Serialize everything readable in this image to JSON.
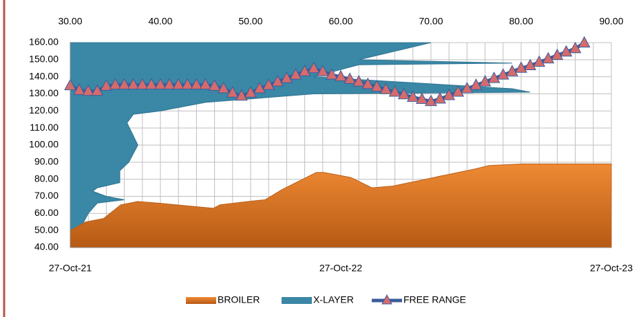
{
  "chart_data": {
    "type": "combo",
    "xlim": [
      30,
      90
    ],
    "xticks": [
      {
        "value": 30,
        "label": "30.00"
      },
      {
        "value": 40,
        "label": "40.00"
      },
      {
        "value": 50,
        "label": "50.00"
      },
      {
        "value": 60,
        "label": "60.00"
      },
      {
        "value": 70,
        "label": "70.00"
      },
      {
        "value": 80,
        "label": "80.00"
      },
      {
        "value": 90,
        "label": "90.00"
      }
    ],
    "x_minor_ticks": [
      32,
      34,
      36,
      38,
      42,
      44,
      46,
      48,
      52,
      54,
      56,
      58,
      62,
      64,
      66,
      68,
      72,
      74,
      76,
      78,
      82,
      84,
      86,
      88
    ],
    "x2lim": [
      "2021-10-27",
      "2023-10-27"
    ],
    "x2ticks": [
      {
        "value": "2021-10-27",
        "label": "27-Oct-21"
      },
      {
        "value": "2022-10-27",
        "label": "27-Oct-22"
      },
      {
        "value": "2023-10-27",
        "label": "27-Oct-23"
      }
    ],
    "ylim": [
      40,
      160
    ],
    "yticks": [
      {
        "value": 40,
        "label": "40.00"
      },
      {
        "value": 50,
        "label": "50.00"
      },
      {
        "value": 60,
        "label": "60.00"
      },
      {
        "value": 70,
        "label": "70.00"
      },
      {
        "value": 80,
        "label": "80.00"
      },
      {
        "value": 90,
        "label": "90.00"
      },
      {
        "value": 100,
        "label": "100.00"
      },
      {
        "value": 110,
        "label": "110.00"
      },
      {
        "value": 120,
        "label": "120.00"
      },
      {
        "value": 130,
        "label": "130.00"
      },
      {
        "value": 140,
        "label": "140.00"
      },
      {
        "value": 150,
        "label": "150.00"
      },
      {
        "value": 160,
        "label": "160.00"
      }
    ],
    "grid": true,
    "legend": "bottom",
    "series": [
      {
        "name": "X-LAYER",
        "type": "area",
        "xaxis": "x",
        "color": "#3a87a6",
        "x": [
          70,
          62,
          79,
          62,
          57,
          79,
          81,
          57,
          45,
          40,
          37,
          36.3,
          37.5,
          36.5,
          35.5,
          35.5,
          33,
          32.5,
          34,
          36,
          33,
          32,
          31,
          34.5,
          34.5
        ],
        "values": [
          160,
          150,
          148,
          147,
          140,
          133,
          131,
          130,
          125,
          120,
          118,
          113,
          100,
          90,
          85,
          78,
          75,
          73,
          70,
          68,
          66,
          60,
          50,
          43,
          41
        ]
      },
      {
        "name": "BROILER",
        "type": "area",
        "xaxis": "x2",
        "color": "#d8731f",
        "x": [
          "2021-10-27",
          "2021-11-17",
          "2021-12-11",
          "2022-01-03",
          "2022-01-26",
          "2022-02-23",
          "2022-05-08",
          "2022-05-17",
          "2022-06-24",
          "2022-07-17",
          "2022-08-09",
          "2022-09-24",
          "2022-10-04",
          "2022-11-10",
          "2022-12-08",
          "2023-01-05",
          "2023-03-01",
          "2023-04-26",
          "2023-05-15",
          "2023-06-30",
          "2023-10-27"
        ],
        "values": [
          50,
          55,
          57,
          65,
          67,
          66,
          63,
          65,
          67,
          68,
          74,
          84,
          84,
          81,
          75,
          76,
          81,
          86,
          88,
          89,
          89
        ]
      },
      {
        "name": "FREE RANGE",
        "type": "line",
        "xaxis": "x",
        "color": "#3b5c9c",
        "marker_color": "#d66b6b",
        "x": [
          30,
          31,
          32,
          33,
          34,
          35,
          36,
          37,
          38,
          39,
          40,
          41,
          42,
          43,
          44,
          45,
          46,
          47,
          48,
          49,
          50,
          51,
          52,
          53,
          54,
          55,
          56,
          57,
          58,
          59,
          60,
          61,
          62,
          63,
          64,
          65,
          66,
          67,
          68,
          69,
          70,
          71,
          72,
          73,
          74,
          75,
          76,
          77,
          78,
          79,
          80,
          81,
          82,
          83,
          84,
          85,
          86,
          87
        ],
        "values": [
          134.8,
          132,
          131.5,
          131.5,
          134.5,
          135.2,
          135.2,
          135.2,
          135.2,
          135.2,
          135.2,
          135.2,
          135.2,
          135.2,
          135.2,
          135.2,
          134.5,
          133,
          130.5,
          128.7,
          130.5,
          133,
          135,
          137,
          139,
          141,
          143,
          144.8,
          143,
          141,
          140,
          138.5,
          137,
          135.5,
          134,
          132.5,
          131,
          129.5,
          128,
          126.8,
          125.5,
          127,
          129,
          131,
          133,
          135,
          137,
          139,
          141,
          143,
          145,
          146.5,
          148.5,
          150.5,
          152.5,
          154.5,
          156.5,
          159.8
        ]
      }
    ]
  }
}
